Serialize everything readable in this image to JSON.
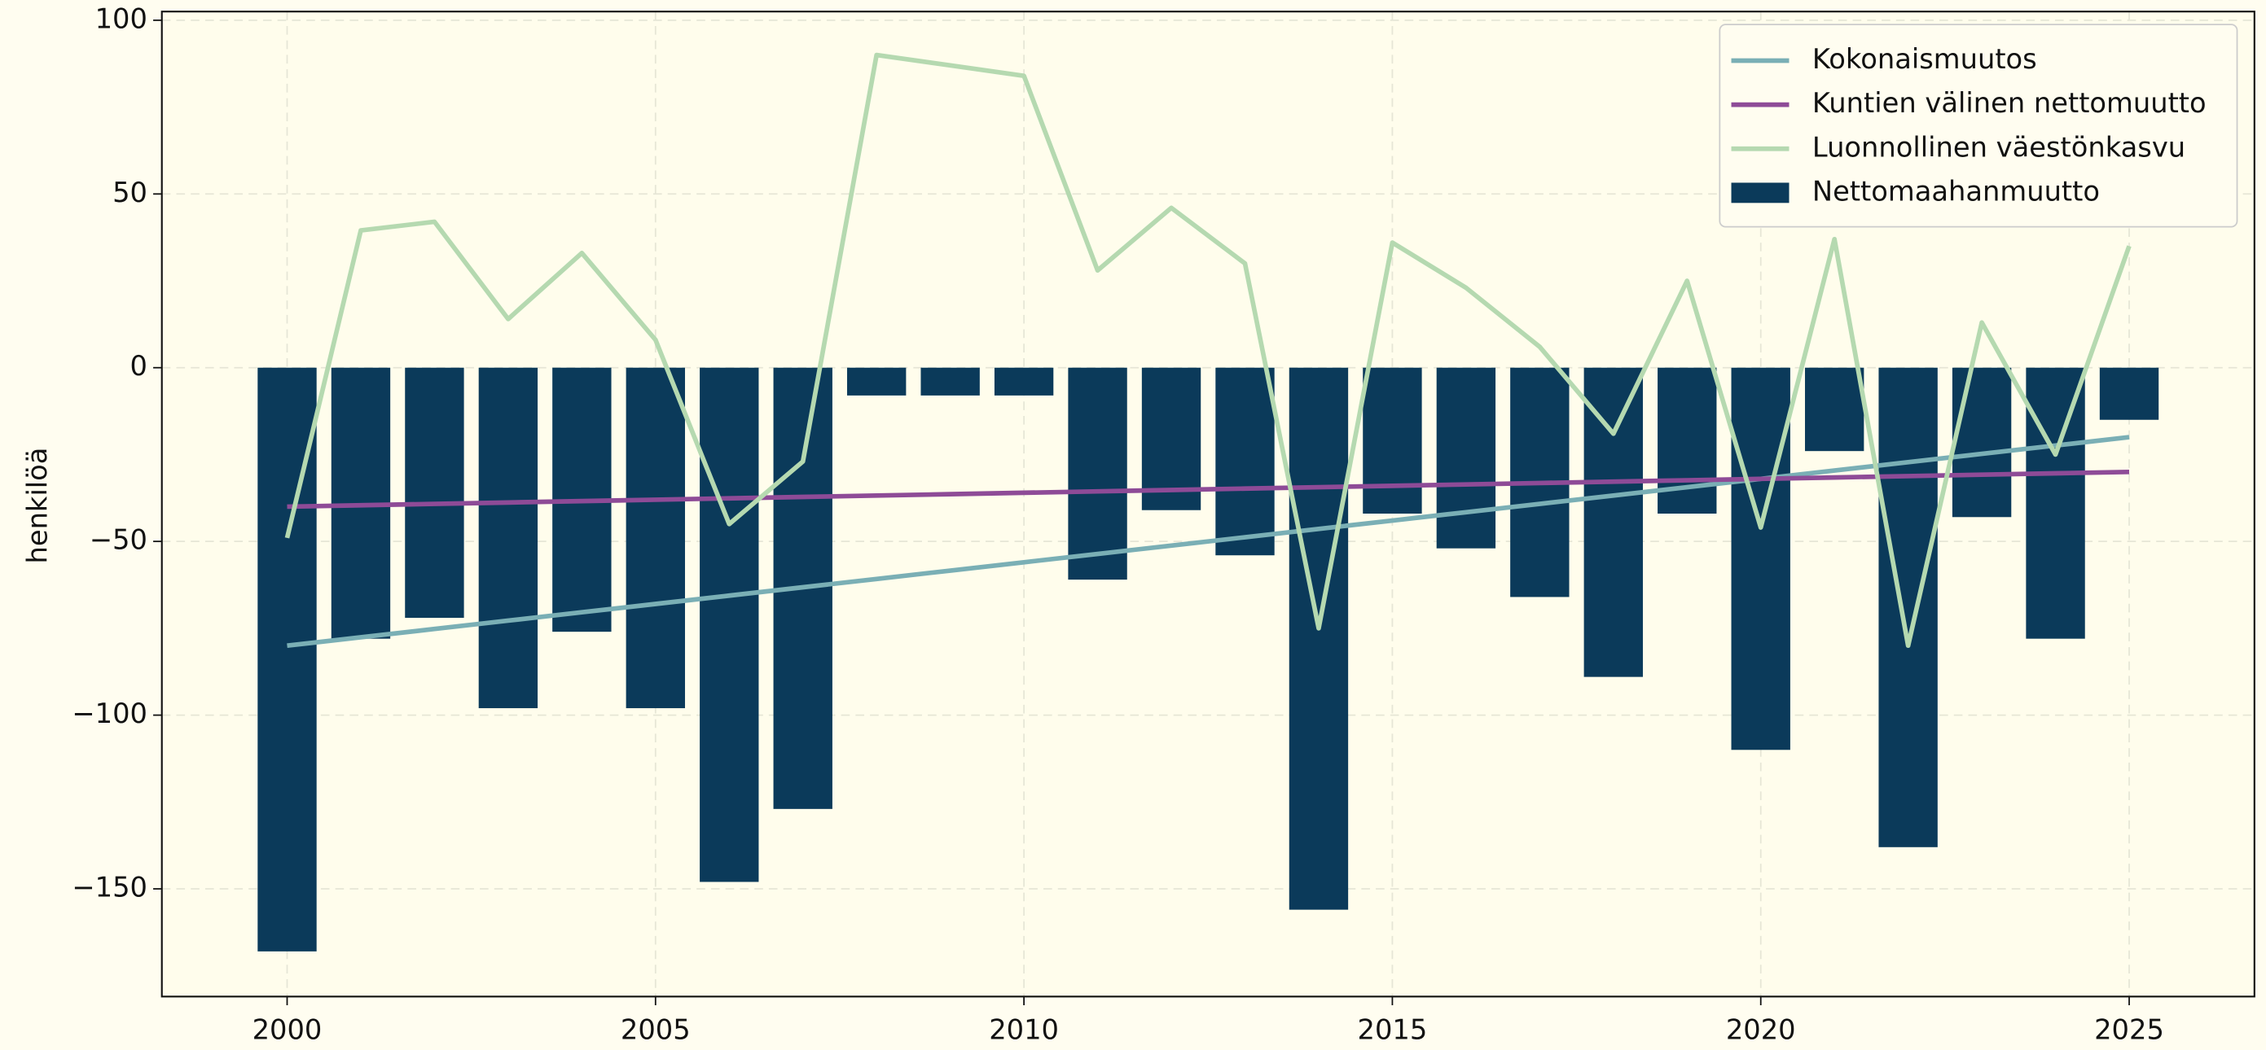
{
  "chart_data": {
    "type": "bar",
    "ylabel": "henkilöä",
    "x": [
      2000,
      2001,
      2002,
      2003,
      2004,
      2005,
      2006,
      2007,
      2008,
      2009,
      2010,
      2011,
      2012,
      2013,
      2014,
      2015,
      2016,
      2017,
      2018,
      2019,
      2020,
      2021,
      2022,
      2023,
      2024,
      2025
    ],
    "series": [
      {
        "name": "Kokonaismuutos",
        "type": "line",
        "color": "#7aafb5",
        "values": [
          -80,
          -77.6,
          -75.2,
          -72.8,
          -70.4,
          -68,
          -65.6,
          -63.2,
          -60.8,
          -58.4,
          -56,
          -53.6,
          -51.2,
          -48.8,
          -46.4,
          -44,
          -41.6,
          -39.2,
          -36.8,
          -34.4,
          -32,
          -29.6,
          -27.2,
          -24.8,
          -22.4,
          -20
        ]
      },
      {
        "name": "Kuntien välinen nettomuutto",
        "type": "line",
        "color": "#8e4b97",
        "values": [
          -40,
          -39.6,
          -39.2,
          -38.8,
          -38.4,
          -38,
          -37.6,
          -37.2,
          -36.8,
          -36.4,
          -36,
          -35.6,
          -35.2,
          -34.8,
          -34.4,
          -34,
          -33.6,
          -33.2,
          -32.8,
          -32.4,
          -32,
          -31.6,
          -31.2,
          -30.8,
          -30.4,
          -30
        ]
      },
      {
        "name": "Luonnollinen väestönkasvu",
        "type": "line",
        "color": "#b5d9b0",
        "values": [
          -49,
          39.5,
          42,
          14,
          33,
          8,
          -45,
          -27,
          90,
          87,
          84,
          28,
          46,
          30,
          -75,
          36,
          23,
          6,
          -19,
          25,
          -46,
          37,
          -80,
          13,
          -25,
          35
        ]
      },
      {
        "name": "Nettomaahanmuutto",
        "type": "bar",
        "color": "#0b3a5a",
        "values": [
          -168,
          -78,
          -72,
          -98,
          -76,
          -98,
          -148,
          -127,
          -8,
          -8,
          -8,
          -61,
          -41,
          -54,
          -156,
          -42,
          -52,
          -66,
          -89,
          -42,
          -110,
          -24,
          -138,
          -43,
          -78,
          -15
        ]
      }
    ],
    "xlim": [
      1998.3,
      2026.7
    ],
    "xticks": [
      2000,
      2005,
      2010,
      2015,
      2020,
      2025
    ],
    "ylim": [
      -181,
      102.5
    ],
    "yticks": [
      {
        "value": -150,
        "label": "−150"
      },
      {
        "value": -100,
        "label": "−100"
      },
      {
        "value": -50,
        "label": "−50"
      },
      0,
      50,
      100
    ],
    "grid": true,
    "legend": "upper right"
  }
}
